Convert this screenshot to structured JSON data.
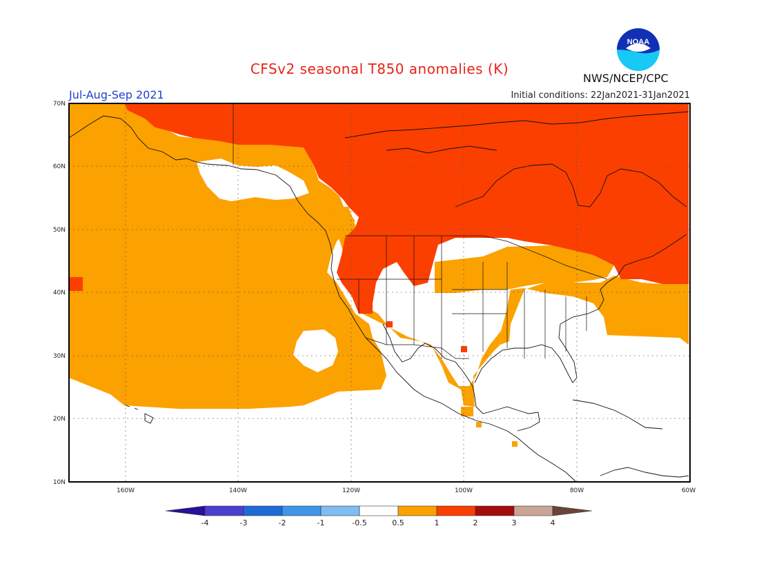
{
  "header": {
    "title": "CFSv2 seasonal T850 anomalies (K)",
    "season": "Jul-Aug-Sep 2021",
    "initial_conditions": "Initial conditions: 22Jan2021-31Jan2021",
    "agency": "NWS/NCEP/CPC",
    "logo_text": "NOAA"
  },
  "axes": {
    "lat_labels": [
      "70N",
      "60N",
      "50N",
      "40N",
      "30N",
      "20N",
      "10N"
    ],
    "lon_labels": [
      "160W",
      "140W",
      "120W",
      "100W",
      "80W",
      "60W"
    ]
  },
  "colorbar": {
    "labels": [
      "-4",
      "-3",
      "-2",
      "-1",
      "-0.5",
      "0.5",
      "1",
      "2",
      "3",
      "4"
    ],
    "colors": {
      "below_-4": "#2a0f9a",
      "-4_-3": "#4b3fcf",
      "-3_-2": "#1e6ad6",
      "-2_-1": "#3f95e8",
      "-1_-0.5": "#7fbdf2",
      "-0.5_0.5": "#ffffff",
      "0.5_1": "#fba100",
      "1_2": "#fb3f00",
      "2_3": "#a50d0d",
      "3_4": "#c9a596",
      "above_4": "#6a4438"
    }
  },
  "anomaly_colors": {
    "neutral": "#ffffff",
    "warm_0.5_1": "#fba100",
    "warm_1_2": "#fb3f00"
  }
}
